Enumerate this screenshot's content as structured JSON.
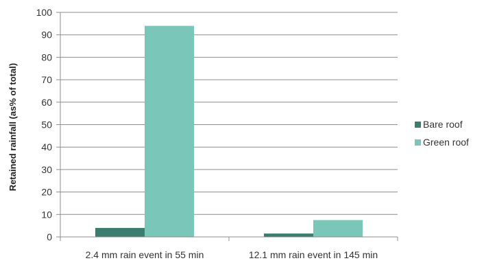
{
  "chart_data": {
    "type": "bar",
    "categories": [
      "2.4 mm rain event in 55 min",
      "12.1 mm rain event in 145 min"
    ],
    "series": [
      {
        "name": "Bare roof",
        "values": [
          4,
          1.5
        ],
        "color": "#3b7d6e"
      },
      {
        "name": "Green roof",
        "values": [
          94,
          7.5
        ],
        "color": "#7ac6b8"
      }
    ],
    "xlabel": "",
    "ylabel": "Retained rainfall (as% of total)",
    "ylim": [
      0,
      100
    ],
    "yticks": [
      0,
      10,
      20,
      30,
      40,
      50,
      60,
      70,
      80,
      90,
      100
    ],
    "grid": true,
    "legend_position": "right"
  }
}
